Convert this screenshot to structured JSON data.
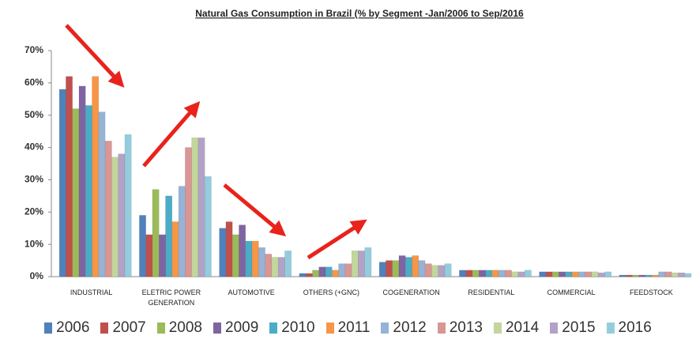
{
  "chart_data": {
    "type": "bar",
    "title": "Natural Gas Consumption in Brazil (% by Segment  -Jan/2006 to Sep/2016",
    "categories": [
      "INDUSTRIAL",
      "ELETRIC POWER GENERATION",
      "AUTOMOTIVE",
      "OTHERS (+GNC)",
      "COGENERATION",
      "RESIDENTIAL",
      "COMMERCIAL",
      "FEEDSTOCK"
    ],
    "series": [
      {
        "name": "2006",
        "color": "#4f81bd",
        "values": [
          58,
          19,
          15,
          1,
          4.5,
          2,
          1.5,
          0.5
        ]
      },
      {
        "name": "2007",
        "color": "#c0504d",
        "values": [
          62,
          13,
          17,
          1,
          5,
          2,
          1.5,
          0.5
        ]
      },
      {
        "name": "2008",
        "color": "#9bbb59",
        "values": [
          52,
          27,
          13,
          2,
          5,
          2,
          1.5,
          0.5
        ]
      },
      {
        "name": "2009",
        "color": "#8064a2",
        "values": [
          59,
          13,
          16,
          3,
          6.5,
          2,
          1.5,
          0.5
        ]
      },
      {
        "name": "2010",
        "color": "#4bacc6",
        "values": [
          53,
          25,
          11,
          3,
          6,
          2,
          1.5,
          0.5
        ]
      },
      {
        "name": "2011",
        "color": "#f79646",
        "values": [
          62,
          17,
          11,
          2,
          6.5,
          2,
          1.5,
          0.5
        ]
      },
      {
        "name": "2012",
        "color": "#95b3d7",
        "values": [
          51,
          28,
          9,
          4,
          5,
          2,
          1.5,
          1.5
        ]
      },
      {
        "name": "2013",
        "color": "#d99694",
        "values": [
          42,
          40,
          7,
          4,
          4,
          2,
          1.5,
          1.5
        ]
      },
      {
        "name": "2014",
        "color": "#c3d69b",
        "values": [
          37,
          43,
          6,
          8,
          3.5,
          1.5,
          1.5,
          1.2
        ]
      },
      {
        "name": "2015",
        "color": "#b3a2c7",
        "values": [
          38,
          43,
          6,
          8,
          3.5,
          1.5,
          1.2,
          1.2
        ]
      },
      {
        "name": "2016",
        "color": "#93cddd",
        "values": [
          44,
          31,
          8,
          9,
          4,
          2,
          1.5,
          1
        ]
      }
    ],
    "ylim": [
      0,
      70
    ],
    "yticks": [
      {
        "value": 0,
        "label": "0%"
      },
      {
        "value": 10,
        "label": "10%"
      },
      {
        "value": 20,
        "label": "20%"
      },
      {
        "value": 30,
        "label": "30%"
      },
      {
        "value": 40,
        "label": "40%"
      },
      {
        "value": 50,
        "label": "50%"
      },
      {
        "value": 60,
        "label": "60%"
      },
      {
        "value": 70,
        "label": "70%"
      }
    ],
    "grid": false
  }
}
